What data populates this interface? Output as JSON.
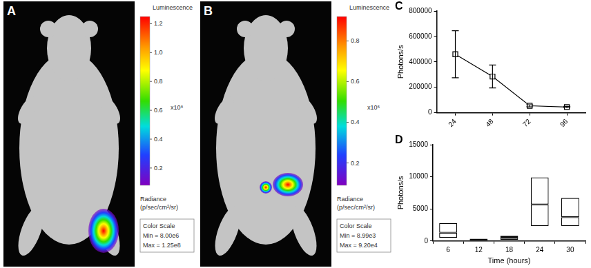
{
  "panels": [
    {
      "panel": "A",
      "colorbar": {
        "title": "Luminescence",
        "multiplier": "x10⁸",
        "lim": [
          0.08,
          1.25
        ],
        "ticks": [
          0.2,
          0.4,
          0.6,
          0.8,
          {
            "value": 1,
            "label": "1.0"
          },
          1.2
        ],
        "unit": [
          "Radiance",
          "(p/sec/cm²/sr)"
        ],
        "scale_title": "Color Scale",
        "min_label": "Min = 8.00e6",
        "max_label": "Max = 1.25e8"
      }
    },
    {
      "panel": "B",
      "colorbar": {
        "title": "Luminescence",
        "multiplier": "x10⁵",
        "lim": [
          0.0899,
          0.92
        ],
        "ticks": [
          0.2,
          0.4,
          0.6,
          0.8
        ],
        "unit": [
          "Radiance",
          "(p/sec/cm²/sr)"
        ],
        "scale_title": "Color Scale",
        "min_label": "Min = 8.99e3",
        "max_label": "Max = 9.20e4"
      }
    }
  ],
  "chart_data": [
    {
      "type": "line",
      "panel": "C",
      "y_label": "Photons/s",
      "categories": [
        "24",
        "48",
        "72",
        "96"
      ],
      "values": [
        460000,
        285000,
        55000,
        45000
      ],
      "errors": [
        185000,
        90000,
        8000,
        5000
      ],
      "color": "#000000",
      "marker": "square",
      "ylim": [
        0,
        800000
      ],
      "yticks": [
        0,
        200000,
        400000,
        600000,
        800000
      ],
      "grid": false
    },
    {
      "type": "box",
      "panel": "D",
      "x_label": "Time (hours)",
      "y_label": "Photons/s",
      "categories": [
        "6",
        "12",
        "18",
        "24",
        "30"
      ],
      "boxes": [
        {
          "low": 500,
          "median": 1300,
          "high": 2800
        },
        {
          "low": 100,
          "median": 200,
          "high": 350
        },
        {
          "low": 200,
          "median": 500,
          "high": 800
        },
        {
          "low": 2300,
          "median": 5700,
          "high": 9900
        },
        {
          "low": 2300,
          "median": 3700,
          "high": 6700
        }
      ],
      "color": "#000000",
      "ylim": [
        0,
        15000
      ],
      "yticks": [
        0,
        5000,
        10000,
        15000
      ],
      "grid": false
    }
  ]
}
